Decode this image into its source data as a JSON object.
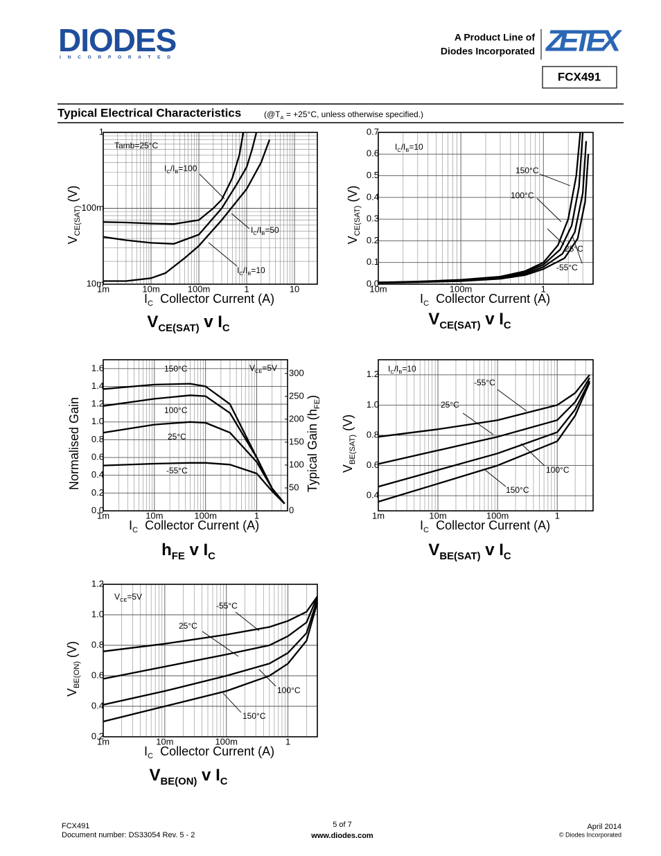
{
  "header": {
    "logo": "DIODES",
    "logo_sub": "I N C O R P O R A T E D",
    "product_line": "A Product Line of",
    "company": "Diodes Incorporated",
    "brand": "ZETEX",
    "part": "FCX491"
  },
  "section": {
    "title": "Typical Electrical Characteristics",
    "note": [
      "(@T",
      "A",
      " = +25°C, unless otherwise specified.)"
    ]
  },
  "chart_data": [
    {
      "type": "line",
      "title": [
        "V",
        "CE(SAT)",
        " v I",
        "C"
      ],
      "xlabel": [
        "I",
        "C",
        "  Collector Current (A)"
      ],
      "ylabel": [
        "V",
        "CE(SAT)",
        " (V)"
      ],
      "log_x": true,
      "log_y": true,
      "grid": true,
      "color": "#000000",
      "xlim": [
        0.001,
        30
      ],
      "xticks": [
        {
          "value": 0.001,
          "label": "1m"
        },
        {
          "value": 0.01,
          "label": "10m"
        },
        {
          "value": 0.1,
          "label": "100m"
        },
        1,
        10
      ],
      "ylim": [
        0.01,
        1
      ],
      "yticks": [
        {
          "value": 0.01,
          "label": "10m"
        },
        {
          "value": 0.1,
          "label": "100m"
        },
        1
      ],
      "annotations": [
        "Tamb=25°C"
      ],
      "series": [
        {
          "name": [
            "I",
            "C",
            "/I",
            "B",
            "=100"
          ],
          "x": [
            0.001,
            0.003,
            0.01,
            0.03,
            0.1,
            0.2,
            0.3,
            0.5,
            0.7,
            0.85
          ],
          "values": [
            0.066,
            0.065,
            0.063,
            0.062,
            0.07,
            0.1,
            0.13,
            0.25,
            0.5,
            1
          ]
        },
        {
          "name": [
            "I",
            "C",
            "/I",
            "B",
            "=50"
          ],
          "x": [
            0.001,
            0.003,
            0.01,
            0.03,
            0.1,
            0.3,
            0.6,
            1,
            1.3,
            1.6
          ],
          "values": [
            0.042,
            0.038,
            0.035,
            0.034,
            0.045,
            0.1,
            0.2,
            0.35,
            0.6,
            1
          ]
        },
        {
          "name": [
            "I",
            "C",
            "/I",
            "B",
            "=10"
          ],
          "x": [
            0.001,
            0.003,
            0.01,
            0.02,
            0.05,
            0.1,
            0.3,
            1,
            2,
            3
          ],
          "values": [
            0.011,
            0.011,
            0.012,
            0.014,
            0.022,
            0.032,
            0.07,
            0.18,
            0.4,
            0.8
          ]
        }
      ]
    },
    {
      "type": "line",
      "title": [
        "V",
        "CE(SAT)",
        " v I",
        "C"
      ],
      "xlabel": [
        "I",
        "C",
        "  Collector Current (A)"
      ],
      "ylabel": [
        "V",
        "CE(SAT)",
        " (V)"
      ],
      "log_x": true,
      "grid": true,
      "color": "#000000",
      "xlim": [
        0.01,
        4
      ],
      "xticks": [
        {
          "value": 0.01,
          "label": "10m"
        },
        {
          "value": 0.1,
          "label": "100m"
        },
        1
      ],
      "ylim": [
        0,
        0.7
      ],
      "yticks": [
        {
          "value": 0,
          "label": "0.0"
        },
        0.1,
        0.2,
        0.3,
        0.4,
        0.5,
        0.6,
        0.7
      ],
      "annotations": [
        [
          "I",
          "C",
          "/I",
          "B",
          "=10"
        ]
      ],
      "series": [
        {
          "name": "150°C",
          "x": [
            0.01,
            0.03,
            0.1,
            0.3,
            0.6,
            1,
            1.5,
            2,
            2.5,
            2.8
          ],
          "values": [
            0.008,
            0.012,
            0.02,
            0.035,
            0.06,
            0.1,
            0.18,
            0.3,
            0.5,
            0.7
          ]
        },
        {
          "name": "100°C",
          "x": [
            0.01,
            0.03,
            0.1,
            0.3,
            0.6,
            1,
            1.6,
            2.2,
            2.7,
            3
          ],
          "values": [
            0.008,
            0.011,
            0.018,
            0.032,
            0.055,
            0.09,
            0.16,
            0.27,
            0.45,
            0.7
          ]
        },
        {
          "name": "25°C",
          "x": [
            0.01,
            0.03,
            0.1,
            0.3,
            0.6,
            1,
            1.7,
            2.4,
            3,
            3.3
          ],
          "values": [
            0.007,
            0.01,
            0.016,
            0.028,
            0.048,
            0.08,
            0.14,
            0.24,
            0.42,
            0.66
          ]
        },
        {
          "name": "-55°C",
          "x": [
            0.01,
            0.03,
            0.1,
            0.3,
            0.6,
            1,
            1.8,
            2.6,
            3.2,
            3.5
          ],
          "values": [
            0.006,
            0.009,
            0.014,
            0.025,
            0.042,
            0.07,
            0.12,
            0.21,
            0.38,
            0.6
          ]
        }
      ]
    },
    {
      "type": "line",
      "title": [
        "h",
        "FE",
        " v I",
        "C"
      ],
      "xlabel": [
        "I",
        "C",
        "  Collector Current (A)"
      ],
      "ylabel": "Normalised Gain",
      "y2label": [
        "Typical Gain (h",
        "FE",
        ")"
      ],
      "log_x": true,
      "grid": true,
      "color": "#000000",
      "xlim": [
        0.001,
        4
      ],
      "xticks": [
        {
          "value": 0.001,
          "label": "1m"
        },
        {
          "value": 0.01,
          "label": "10m"
        },
        {
          "value": 0.1,
          "label": "100m"
        },
        1
      ],
      "ylim": [
        0,
        1.7
      ],
      "yticks": [
        {
          "value": 0,
          "label": "0.0"
        },
        0.2,
        0.4,
        0.6,
        0.8,
        {
          "value": 1,
          "label": "1.0"
        },
        1.2,
        1.4,
        1.6
      ],
      "y2lim": [
        0,
        330
      ],
      "y2ticks": [
        0,
        50,
        100,
        150,
        200,
        250,
        300
      ],
      "annotations": [
        [
          "V",
          "CE",
          "=5V"
        ]
      ],
      "series": [
        {
          "name": "150°C",
          "x": [
            0.001,
            0.01,
            0.05,
            0.1,
            0.3,
            1,
            2,
            3.5
          ],
          "values": [
            1.37,
            1.42,
            1.43,
            1.4,
            1.2,
            0.6,
            0.25,
            0.08
          ]
        },
        {
          "name": "100°C",
          "x": [
            0.001,
            0.01,
            0.05,
            0.1,
            0.3,
            1,
            2,
            3.5
          ],
          "values": [
            1.18,
            1.26,
            1.3,
            1.29,
            1.1,
            0.6,
            0.25,
            0.08
          ]
        },
        {
          "name": "25°C",
          "x": [
            0.001,
            0.01,
            0.05,
            0.1,
            0.3,
            1,
            2,
            3.5
          ],
          "values": [
            0.88,
            0.97,
            1,
            0.99,
            0.88,
            0.55,
            0.25,
            0.08
          ]
        },
        {
          "name": "-55°C",
          "x": [
            0.001,
            0.01,
            0.05,
            0.1,
            0.3,
            1,
            2,
            3.5
          ],
          "values": [
            0.51,
            0.53,
            0.54,
            0.54,
            0.52,
            0.42,
            0.22,
            0.08
          ]
        }
      ]
    },
    {
      "type": "line",
      "title": [
        "V",
        "BE(SAT)",
        " v I",
        "C"
      ],
      "xlabel": [
        "I",
        "C",
        "  Collector Current (A)"
      ],
      "ylabel": [
        "V",
        "BE(SAT)",
        " (V)"
      ],
      "log_x": true,
      "grid": true,
      "color": "#000000",
      "xlim": [
        0.001,
        4
      ],
      "xticks": [
        {
          "value": 0.001,
          "label": "1m"
        },
        {
          "value": 0.01,
          "label": "10m"
        },
        {
          "value": 0.1,
          "label": "100m"
        },
        1
      ],
      "ylim": [
        0.3,
        1.3
      ],
      "yticks": [
        0.4,
        0.6,
        0.8,
        {
          "value": 1,
          "label": "1.0"
        },
        1.2
      ],
      "annotations": [
        [
          "I",
          "C",
          "/I",
          "B",
          "=10"
        ]
      ],
      "series": [
        {
          "name": "-55°C",
          "x": [
            0.001,
            0.01,
            0.1,
            1,
            2,
            3.5
          ],
          "values": [
            0.79,
            0.84,
            0.9,
            1,
            1.08,
            1.2
          ]
        },
        {
          "name": "25°C",
          "x": [
            0.001,
            0.01,
            0.1,
            1,
            2,
            3.5
          ],
          "values": [
            0.61,
            0.7,
            0.79,
            0.9,
            1.02,
            1.18
          ]
        },
        {
          "name": "100°C",
          "x": [
            0.001,
            0.01,
            0.1,
            1,
            2,
            3.5
          ],
          "values": [
            0.46,
            0.57,
            0.68,
            0.82,
            0.97,
            1.16
          ]
        },
        {
          "name": "150°C",
          "x": [
            0.001,
            0.01,
            0.1,
            1,
            2,
            3.5
          ],
          "values": [
            0.36,
            0.48,
            0.6,
            0.76,
            0.93,
            1.15
          ]
        }
      ]
    },
    {
      "type": "line",
      "title": [
        "V",
        "BE(ON)",
        " v I",
        "C"
      ],
      "xlabel": [
        "I",
        "C",
        "  Collector Current (A)"
      ],
      "ylabel": [
        "V",
        "BE(ON)",
        " (V)"
      ],
      "log_x": true,
      "grid": true,
      "color": "#000000",
      "xlim": [
        0.001,
        3
      ],
      "xticks": [
        {
          "value": 0.001,
          "label": "1m"
        },
        {
          "value": 0.01,
          "label": "10m"
        },
        {
          "value": 0.1,
          "label": "100m"
        },
        1
      ],
      "ylim": [
        0.2,
        1.2
      ],
      "yticks": [
        0.2,
        0.4,
        0.6,
        0.8,
        {
          "value": 1,
          "label": "1.0"
        },
        1.2
      ],
      "annotations": [
        [
          "V",
          "CE",
          "=5V"
        ]
      ],
      "series": [
        {
          "name": "-55°C",
          "x": [
            0.001,
            0.01,
            0.1,
            0.5,
            1,
            2,
            3
          ],
          "values": [
            0.76,
            0.81,
            0.87,
            0.92,
            0.96,
            1.02,
            1.12
          ]
        },
        {
          "name": "25°C",
          "x": [
            0.001,
            0.01,
            0.1,
            0.5,
            1,
            2,
            3
          ],
          "values": [
            0.58,
            0.66,
            0.74,
            0.8,
            0.86,
            0.95,
            1.12
          ]
        },
        {
          "name": "100°C",
          "x": [
            0.001,
            0.01,
            0.1,
            0.5,
            1,
            2,
            3
          ],
          "values": [
            0.41,
            0.5,
            0.6,
            0.68,
            0.75,
            0.88,
            1.1
          ]
        },
        {
          "name": "150°C",
          "x": [
            0.001,
            0.01,
            0.1,
            0.5,
            1,
            2,
            3
          ],
          "values": [
            0.3,
            0.4,
            0.5,
            0.6,
            0.68,
            0.83,
            1.08
          ]
        }
      ]
    }
  ],
  "footer": {
    "part": "FCX491",
    "doc": "Document number: DS33054 Rev. 5 - 2",
    "page": "5 of 7",
    "url": "www.diodes.com",
    "date": "April 2014",
    "copyright": "© Diodes Incorporated"
  }
}
